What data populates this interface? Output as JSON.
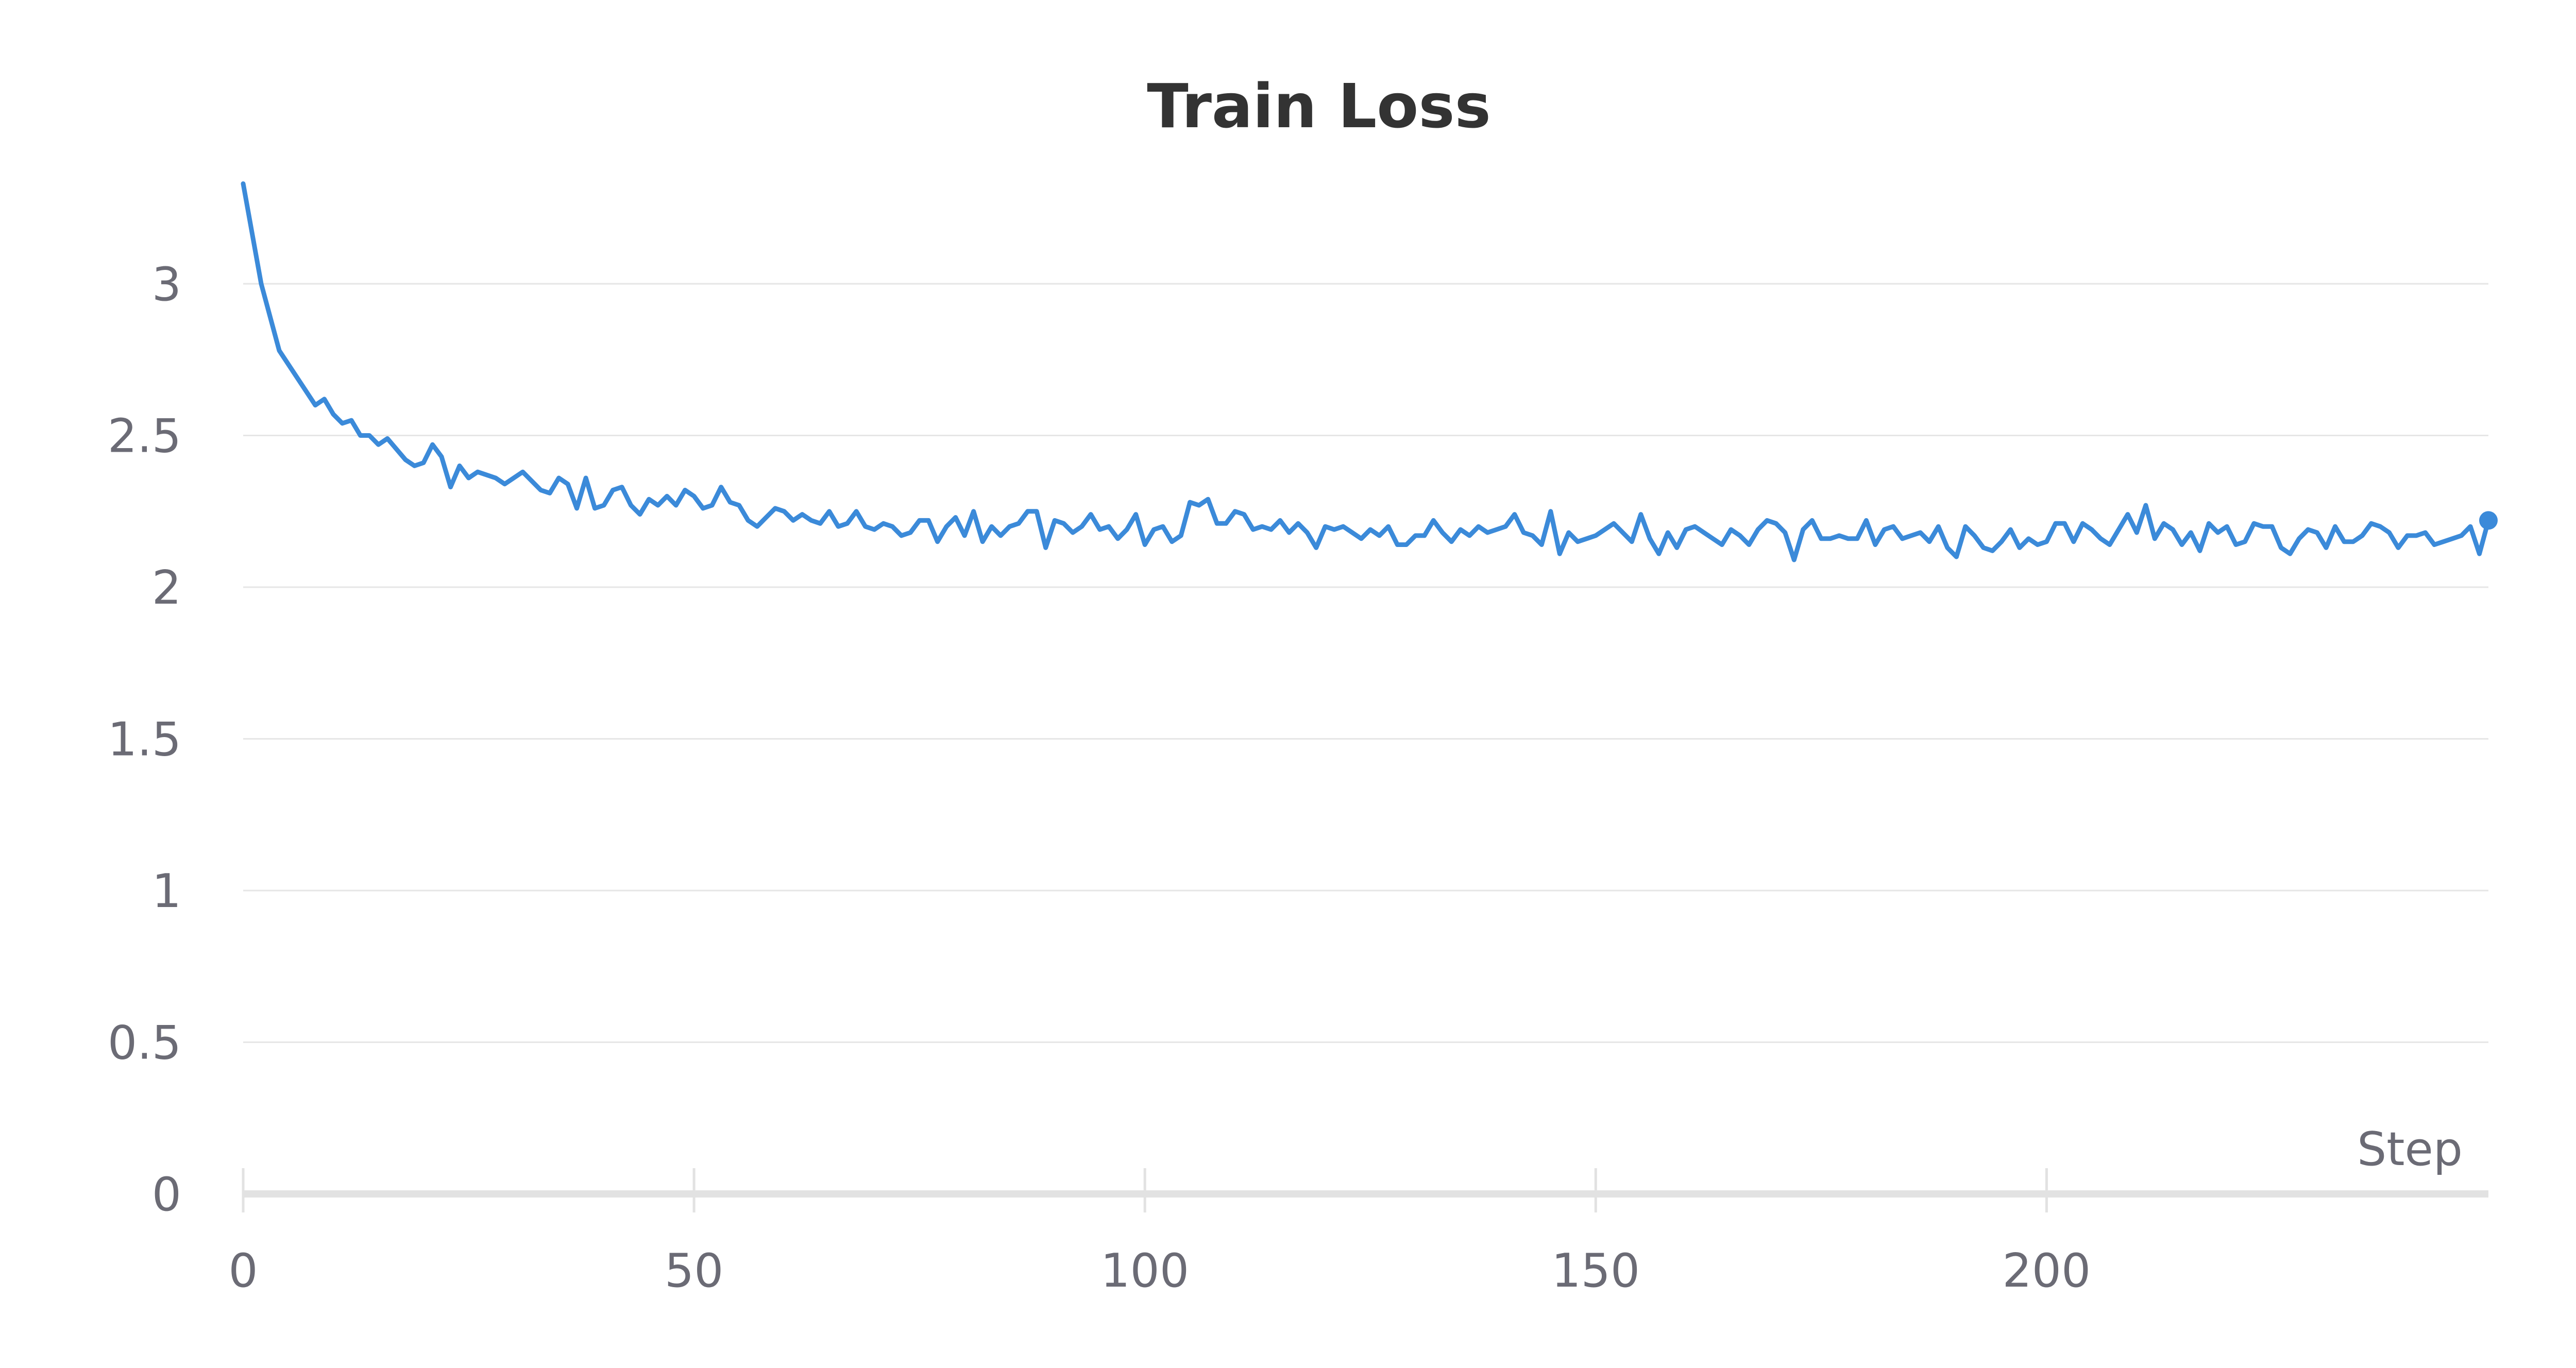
{
  "chart_data": {
    "type": "line",
    "title": "Train Loss",
    "xlabel": "Step",
    "ylabel": "",
    "xlim": [
      0,
      249
    ],
    "ylim": [
      0,
      3.35
    ],
    "x_ticks": [
      0,
      50,
      100,
      150,
      200
    ],
    "y_ticks": [
      0,
      0.5,
      1,
      1.5,
      2,
      2.5,
      3
    ],
    "x_tick_labels": [
      "0",
      "50",
      "100",
      "150",
      "200"
    ],
    "y_tick_labels": [
      "0",
      "0.5",
      "1",
      "1.5",
      "2",
      "2.5",
      "3"
    ],
    "grid": true,
    "legend": "none",
    "colors": {
      "line": "#3b8ad9",
      "grid": "#e6e6e6",
      "axis": "#e2e2e2",
      "text": "#6b6b75",
      "title": "#333333"
    },
    "series": [
      {
        "x": [
          0,
          2,
          4,
          6,
          8,
          9,
          10,
          11,
          12,
          13,
          14,
          15,
          16,
          18,
          19,
          20,
          21,
          22,
          23,
          24,
          25,
          26,
          28,
          29,
          30,
          31,
          33,
          34,
          35,
          36,
          37,
          38,
          39,
          40,
          41,
          42,
          43,
          44,
          45,
          46,
          47,
          48,
          49,
          50,
          51,
          52,
          53,
          54,
          55,
          56,
          57,
          58,
          59,
          60,
          61,
          62,
          63,
          64,
          65,
          66,
          67,
          68,
          69,
          70,
          71,
          72,
          73,
          74,
          75,
          76,
          77,
          78,
          79,
          80,
          81,
          82,
          83,
          84,
          85,
          86,
          87,
          88,
          89,
          90,
          91,
          92,
          93,
          94,
          95,
          96,
          97,
          98,
          99,
          100,
          101,
          102,
          103,
          104,
          105,
          106,
          107,
          108,
          109,
          110,
          111,
          112,
          113,
          114,
          115,
          116,
          117,
          118,
          119,
          120,
          121,
          122,
          123,
          124,
          125,
          126,
          127,
          128,
          129,
          130,
          131,
          132,
          133,
          134,
          135,
          136,
          137,
          138,
          139,
          140,
          141,
          142,
          143,
          144,
          145,
          146,
          147,
          148,
          149,
          150,
          151,
          152,
          153,
          154,
          155,
          156,
          157,
          158,
          159,
          160,
          161,
          162,
          163,
          164,
          165,
          166,
          167,
          168,
          169,
          170,
          171,
          172,
          173,
          174,
          175,
          176,
          177,
          178,
          179,
          180,
          181,
          182,
          183,
          184,
          185,
          186,
          187,
          188,
          189,
          190,
          191,
          192,
          193,
          194,
          195,
          196,
          197,
          198,
          199,
          200,
          201,
          202,
          203,
          204,
          205,
          206,
          207,
          208,
          209,
          210,
          211,
          212,
          213,
          214,
          215,
          216,
          217,
          218,
          219,
          220,
          221,
          222,
          223,
          224,
          225,
          226,
          227,
          228,
          229,
          230,
          231,
          232,
          233,
          234,
          235,
          236,
          237,
          238,
          239,
          240,
          241,
          242,
          243,
          244,
          245,
          246,
          247,
          248,
          249
        ],
        "y": [
          3.33,
          3.0,
          2.78,
          2.69,
          2.6,
          2.62,
          2.57,
          2.54,
          2.55,
          2.5,
          2.5,
          2.47,
          2.49,
          2.42,
          2.4,
          2.41,
          2.47,
          2.43,
          2.33,
          2.4,
          2.36,
          2.38,
          2.36,
          2.34,
          2.36,
          2.38,
          2.32,
          2.31,
          2.36,
          2.34,
          2.26,
          2.36,
          2.26,
          2.27,
          2.32,
          2.33,
          2.27,
          2.24,
          2.29,
          2.27,
          2.3,
          2.27,
          2.32,
          2.3,
          2.26,
          2.27,
          2.33,
          2.28,
          2.27,
          2.22,
          2.2,
          2.23,
          2.26,
          2.25,
          2.22,
          2.24,
          2.22,
          2.21,
          2.25,
          2.2,
          2.21,
          2.25,
          2.2,
          2.19,
          2.21,
          2.2,
          2.17,
          2.18,
          2.22,
          2.22,
          2.15,
          2.2,
          2.23,
          2.17,
          2.25,
          2.15,
          2.2,
          2.17,
          2.2,
          2.21,
          2.25,
          2.25,
          2.13,
          2.22,
          2.21,
          2.18,
          2.2,
          2.24,
          2.19,
          2.2,
          2.16,
          2.19,
          2.24,
          2.14,
          2.19,
          2.2,
          2.15,
          2.17,
          2.28,
          2.27,
          2.29,
          2.21,
          2.21,
          2.25,
          2.24,
          2.19,
          2.2,
          2.19,
          2.22,
          2.18,
          2.21,
          2.18,
          2.13,
          2.2,
          2.19,
          2.2,
          2.18,
          2.16,
          2.19,
          2.17,
          2.2,
          2.14,
          2.14,
          2.17,
          2.17,
          2.22,
          2.18,
          2.15,
          2.19,
          2.17,
          2.2,
          2.18,
          2.19,
          2.2,
          2.24,
          2.18,
          2.17,
          2.14,
          2.25,
          2.11,
          2.18,
          2.15,
          2.16,
          2.17,
          2.19,
          2.21,
          2.18,
          2.15,
          2.24,
          2.16,
          2.11,
          2.18,
          2.13,
          2.19,
          2.2,
          2.18,
          2.16,
          2.14,
          2.19,
          2.17,
          2.14,
          2.19,
          2.22,
          2.21,
          2.18,
          2.09,
          2.19,
          2.22,
          2.16,
          2.16,
          2.17,
          2.16,
          2.16,
          2.22,
          2.14,
          2.19,
          2.2,
          2.16,
          2.17,
          2.18,
          2.15,
          2.2,
          2.13,
          2.1,
          2.2,
          2.17,
          2.13,
          2.12,
          2.15,
          2.19,
          2.13,
          2.16,
          2.14,
          2.15,
          2.21,
          2.21,
          2.15,
          2.21,
          2.19,
          2.16,
          2.14,
          2.19,
          2.24,
          2.18,
          2.27,
          2.16,
          2.21,
          2.19,
          2.14,
          2.18,
          2.12,
          2.21,
          2.18,
          2.2,
          2.14,
          2.15,
          2.21,
          2.2,
          2.2,
          2.13,
          2.11,
          2.16,
          2.19,
          2.18,
          2.13,
          2.2,
          2.15,
          2.15,
          2.17,
          2.21,
          2.2,
          2.18,
          2.13,
          2.17,
          2.17,
          2.18,
          2.14,
          2.15,
          2.16,
          2.17,
          2.2,
          2.11,
          2.22
        ]
      }
    ]
  }
}
